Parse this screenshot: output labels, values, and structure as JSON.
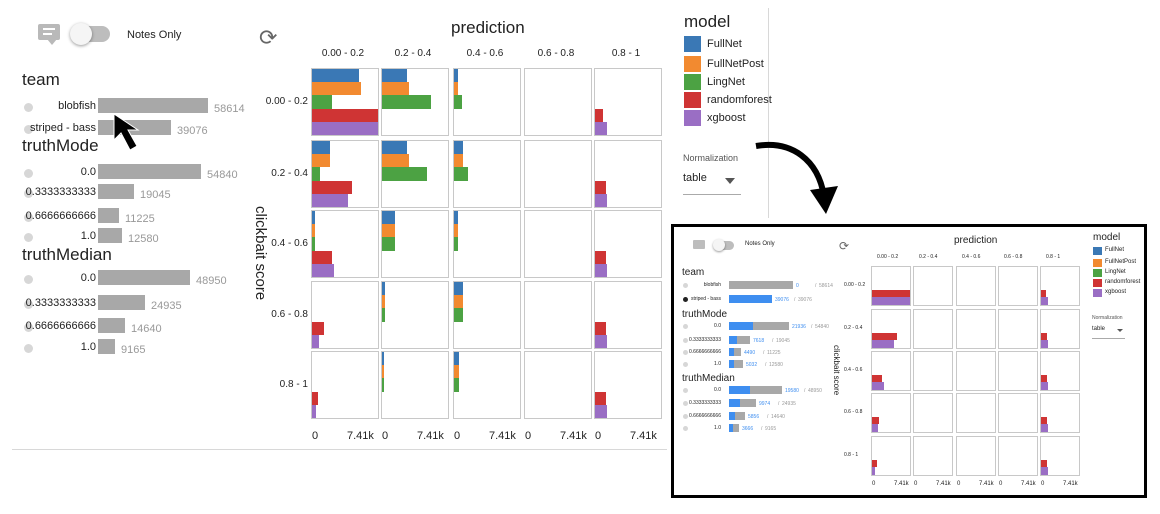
{
  "toolbar": {
    "notes_toggle_label": "Notes Only",
    "refresh_icon": "refresh-icon",
    "notes_icon": "comment-icon"
  },
  "filters": [
    {
      "title": "team",
      "rows": [
        {
          "label": "blobfish",
          "count": "58614",
          "value": 58614
        },
        {
          "label": "striped - bass",
          "count": "39076",
          "value": 39076
        }
      ]
    },
    {
      "title": "truthMode",
      "rows": [
        {
          "label": "0.0",
          "count": "54840",
          "value": 54840
        },
        {
          "label": "0.3333333333",
          "count": "19045",
          "value": 19045
        },
        {
          "label": "0.6666666666",
          "count": "11225",
          "value": 11225
        },
        {
          "label": "1.0",
          "count": "12580",
          "value": 12580
        }
      ]
    },
    {
      "title": "truthMedian",
      "rows": [
        {
          "label": "0.0",
          "count": "48950",
          "value": 48950
        },
        {
          "label": "0.3333333333",
          "count": "24935",
          "value": 24935
        },
        {
          "label": "0.6666666666",
          "count": "14640",
          "value": 14640
        },
        {
          "label": "1.0",
          "count": "9165",
          "value": 9165
        }
      ]
    }
  ],
  "chart_data": {
    "type": "bar",
    "title": "prediction",
    "ylabel": "clickbait score",
    "columns": [
      "0.00 - 0.2",
      "0.2 - 0.4",
      "0.4 - 0.6",
      "0.6 - 0.8",
      "0.8 - 1"
    ],
    "rows": [
      "0.00 - 0.2",
      "0.2 - 0.4",
      "0.4 - 0.6",
      "0.6 - 0.8",
      "0.8 - 1"
    ],
    "x_ticks": [
      "0",
      "7.41k"
    ],
    "xlim": [
      0,
      7410
    ],
    "series": [
      {
        "name": "FullNet",
        "color": "#3a78b5"
      },
      {
        "name": "FullNetPost",
        "color": "#f28a30"
      },
      {
        "name": "LingNet",
        "color": "#4ca243"
      },
      {
        "name": "randomforest",
        "color": "#cf3434"
      },
      {
        "name": "xgboost",
        "color": "#9a6ec4"
      }
    ],
    "cells": [
      [
        [
          5300,
          5500,
          2300,
          7410,
          7410
        ],
        [
          2800,
          3000,
          5500,
          0,
          0
        ],
        [
          400,
          400,
          900,
          0,
          0
        ],
        [
          0,
          0,
          0,
          0,
          0
        ],
        [
          0,
          0,
          0,
          900,
          1300
        ]
      ],
      [
        [
          2000,
          2000,
          900,
          4500,
          4000
        ],
        [
          2800,
          3000,
          5000,
          0,
          0
        ],
        [
          1000,
          1000,
          1600,
          0,
          0
        ],
        [
          0,
          0,
          0,
          0,
          0
        ],
        [
          0,
          0,
          0,
          1200,
          1400
        ]
      ],
      [
        [
          300,
          300,
          300,
          2300,
          2500
        ],
        [
          1500,
          1500,
          1500,
          0,
          0
        ],
        [
          500,
          500,
          500,
          0,
          0
        ],
        [
          0,
          0,
          0,
          0,
          0
        ],
        [
          0,
          0,
          0,
          1200,
          1400
        ]
      ],
      [
        [
          0,
          0,
          0,
          1300,
          800
        ],
        [
          300,
          300,
          300,
          0,
          0
        ],
        [
          1000,
          1000,
          1000,
          0,
          0
        ],
        [
          0,
          0,
          0,
          0,
          0
        ],
        [
          0,
          0,
          0,
          1200,
          1400
        ]
      ],
      [
        [
          0,
          0,
          0,
          700,
          400
        ],
        [
          100,
          100,
          100,
          0,
          0
        ],
        [
          600,
          600,
          600,
          0,
          0
        ],
        [
          0,
          0,
          0,
          0,
          0
        ],
        [
          0,
          0,
          0,
          1200,
          1400
        ]
      ]
    ]
  },
  "legend": {
    "title": "model"
  },
  "normalization": {
    "label": "Normalization",
    "value": "table"
  },
  "inset": {
    "notes_toggle_label": "Notes Only",
    "prediction_title": "prediction",
    "y_title": "clickbait score",
    "legend_title": "model",
    "normalization_label": "Normalization",
    "normalization_value": "table",
    "filters": [
      {
        "title": "team",
        "rows": [
          {
            "label": "blobfish",
            "sel": "0",
            "total": "58614",
            "sel_value": 0,
            "total_value": 58614,
            "checked": false
          },
          {
            "label": "striped - bass",
            "sel": "39076",
            "total": "39076",
            "sel_value": 39076,
            "total_value": 39076,
            "checked": true
          }
        ]
      },
      {
        "title": "truthMode",
        "rows": [
          {
            "label": "0.0",
            "sel": "21936",
            "total": "54840",
            "sel_value": 21936,
            "total_value": 54840
          },
          {
            "label": "0.3333333333",
            "sel": "7618",
            "total": "19045",
            "sel_value": 7618,
            "total_value": 19045
          },
          {
            "label": "0.6666666666",
            "sel": "4490",
            "total": "11225",
            "sel_value": 4490,
            "total_value": 11225
          },
          {
            "label": "1.0",
            "sel": "5032",
            "total": "12580",
            "sel_value": 5032,
            "total_value": 12580
          }
        ]
      },
      {
        "title": "truthMedian",
        "rows": [
          {
            "label": "0.0",
            "sel": "19580",
            "total": "48950",
            "sel_value": 19580,
            "total_value": 48950
          },
          {
            "label": "0.3333333333",
            "sel": "9974",
            "total": "24935",
            "sel_value": 9974,
            "total_value": 24935
          },
          {
            "label": "0.6666666666",
            "sel": "5856",
            "total": "14640",
            "sel_value": 5856,
            "total_value": 14640
          },
          {
            "label": "1.0",
            "sel": "3666",
            "total": "9165",
            "sel_value": 3666,
            "total_value": 9165
          }
        ]
      }
    ],
    "cells": [
      [
        [
          0,
          0,
          0,
          7410,
          7410
        ],
        [
          0,
          0,
          0,
          0,
          0
        ],
        [
          0,
          0,
          0,
          0,
          0
        ],
        [
          0,
          0,
          0,
          0,
          0
        ],
        [
          0,
          0,
          0,
          900,
          1300
        ]
      ],
      [
        [
          0,
          0,
          0,
          4800,
          4200
        ],
        [
          0,
          0,
          0,
          0,
          0
        ],
        [
          0,
          0,
          0,
          0,
          0
        ],
        [
          0,
          0,
          0,
          0,
          0
        ],
        [
          0,
          0,
          0,
          1200,
          1400
        ]
      ],
      [
        [
          0,
          0,
          0,
          2000,
          2300
        ],
        [
          0,
          0,
          0,
          0,
          0
        ],
        [
          0,
          0,
          0,
          0,
          0
        ],
        [
          0,
          0,
          0,
          0,
          0
        ],
        [
          0,
          0,
          0,
          1200,
          1400
        ]
      ],
      [
        [
          0,
          0,
          0,
          1300,
          1200
        ],
        [
          0,
          0,
          0,
          0,
          0
        ],
        [
          0,
          0,
          0,
          0,
          0
        ],
        [
          0,
          0,
          0,
          0,
          0
        ],
        [
          0,
          0,
          0,
          1200,
          1400
        ]
      ],
      [
        [
          0,
          0,
          0,
          900,
          600
        ],
        [
          0,
          0,
          0,
          0,
          0
        ],
        [
          0,
          0,
          0,
          0,
          0
        ],
        [
          0,
          0,
          0,
          0,
          0
        ],
        [
          0,
          0,
          0,
          1200,
          1400
        ]
      ]
    ]
  }
}
